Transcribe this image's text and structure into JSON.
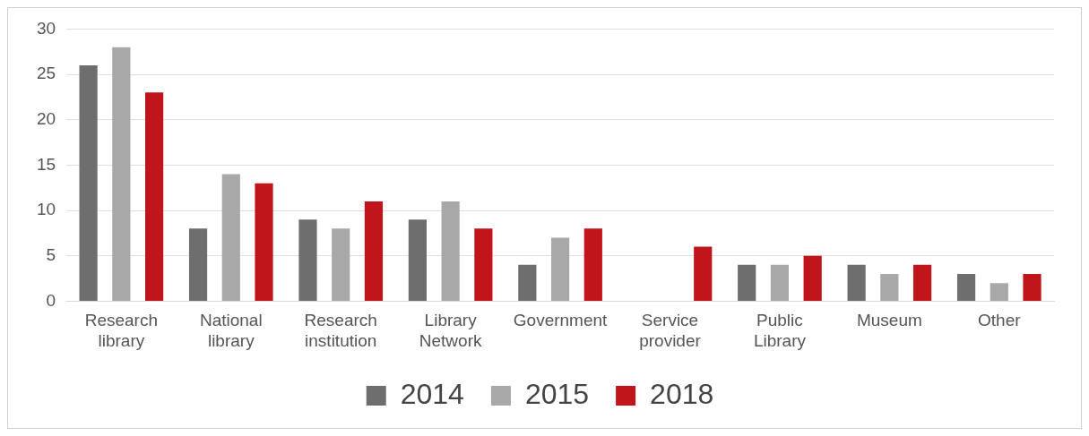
{
  "chart_data": {
    "type": "bar",
    "categories": [
      "Research library",
      "National library",
      "Research institution",
      "Library Network",
      "Government",
      "Service provider",
      "Public Library",
      "Museum",
      "Other"
    ],
    "series": [
      {
        "name": "2014",
        "color": "#6e6e6e",
        "values": [
          26,
          8,
          9,
          9,
          4,
          0,
          4,
          4,
          3
        ]
      },
      {
        "name": "2015",
        "color": "#a8a8a8",
        "values": [
          28,
          14,
          8,
          11,
          7,
          0,
          4,
          3,
          2
        ]
      },
      {
        "name": "2018",
        "color": "#c0161b",
        "values": [
          23,
          13,
          11,
          8,
          8,
          6,
          5,
          4,
          3
        ]
      }
    ],
    "ylim": [
      0,
      30
    ],
    "yticks": [
      0,
      5,
      10,
      15,
      20,
      25,
      30
    ],
    "grid": "y",
    "legend": "bottom"
  }
}
